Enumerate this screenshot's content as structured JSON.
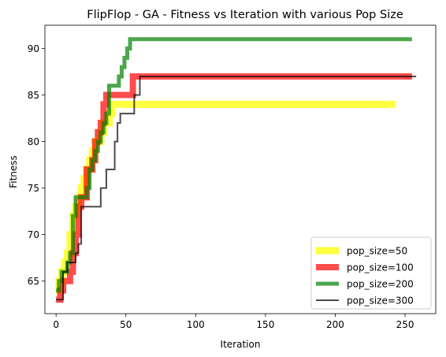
{
  "chart_data": {
    "type": "line",
    "title": "FlipFlop - GA - Fitness vs Iteration with various Pop Size",
    "xlabel": "Iteration",
    "ylabel": "Fitness",
    "xlim": [
      -8,
      272
    ],
    "ylim": [
      61.5,
      92.5
    ],
    "xticks": [
      0,
      50,
      100,
      150,
      200,
      250
    ],
    "yticks": [
      65,
      70,
      75,
      80,
      85,
      90
    ],
    "grid": false,
    "legend_position": "lower right",
    "series": [
      {
        "name": "pop_size=50",
        "color": "#ffff00",
        "alpha": 0.75,
        "x": [
          0,
          2,
          4,
          6,
          8,
          10,
          12,
          14,
          16,
          18,
          20,
          22,
          24,
          26,
          28,
          30,
          32,
          34,
          36,
          38,
          40,
          42,
          243
        ],
        "y": [
          64,
          65,
          66,
          67,
          68,
          70,
          72,
          73,
          74,
          75,
          76,
          77,
          78,
          79,
          80,
          80,
          81,
          82,
          82,
          83,
          84,
          84,
          84
        ]
      },
      {
        "name": "pop_size=100",
        "color": "#ff0000",
        "alpha": 0.7,
        "x": [
          0,
          3,
          5,
          8,
          10,
          12,
          14,
          16,
          18,
          20,
          22,
          24,
          26,
          28,
          30,
          32,
          34,
          36,
          38,
          40,
          53,
          55,
          255
        ],
        "y": [
          63,
          64,
          65,
          65,
          66,
          68,
          70,
          73,
          74,
          74,
          77,
          77,
          78,
          80,
          81,
          82,
          84,
          85,
          85,
          85,
          85,
          87,
          87
        ]
      },
      {
        "name": "pop_size=200",
        "color": "#008000",
        "alpha": 0.7,
        "x": [
          0,
          2,
          4,
          6,
          8,
          10,
          12,
          14,
          16,
          18,
          20,
          22,
          24,
          26,
          28,
          30,
          32,
          34,
          36,
          38,
          40,
          43,
          45,
          47,
          49,
          51,
          53,
          255
        ],
        "y": [
          64,
          65,
          66,
          66,
          67,
          68,
          72,
          74,
          74,
          74,
          74,
          75,
          77,
          78,
          79,
          80,
          81,
          82,
          83,
          86,
          86,
          86,
          87,
          88,
          89,
          90,
          91,
          91
        ]
      },
      {
        "name": "pop_size=300",
        "color": "#000000",
        "alpha": 0.7,
        "x": [
          0,
          3,
          5,
          8,
          10,
          12,
          14,
          16,
          18,
          20,
          22,
          24,
          26,
          28,
          30,
          32,
          34,
          36,
          40,
          42,
          44,
          46,
          48,
          50,
          53,
          56,
          58,
          60,
          258
        ],
        "y": [
          63,
          63,
          66,
          67,
          67,
          67,
          68,
          69,
          73,
          73,
          73,
          73,
          73,
          73,
          73,
          75,
          75,
          77,
          77,
          80,
          82,
          83,
          83,
          83,
          83,
          85,
          85,
          87,
          87
        ]
      }
    ]
  }
}
